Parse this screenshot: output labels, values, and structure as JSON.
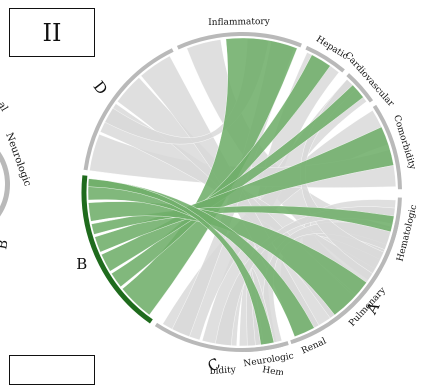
{
  "panel_label": "II",
  "colors": {
    "ribbon_grey": "#d9d9d9",
    "ribbon_green": "#6fae6a",
    "arc_grey": "#b9b9b9",
    "arc_highlight": "#1f6b1d"
  },
  "groups": [
    {
      "id": "A",
      "label": "A"
    },
    {
      "id": "C",
      "label": "C"
    },
    {
      "id": "B",
      "label": "B"
    },
    {
      "id": "D",
      "label": "D"
    },
    {
      "id": "inflammatory",
      "label": "Inflammatory"
    },
    {
      "id": "hepatic",
      "label": "Hepatic"
    },
    {
      "id": "cardiovascular",
      "label": "Cardiovascular"
    },
    {
      "id": "comorbidity",
      "label": "Comorbidity"
    },
    {
      "id": "hematologic",
      "label": "Hematologic"
    },
    {
      "id": "pulmonary",
      "label": "Pulmonary"
    },
    {
      "id": "renal",
      "label": "Renal"
    },
    {
      "id": "neurologic",
      "label": "Neurologic"
    }
  ],
  "highlighted_group": "B",
  "left_fragment": {
    "labels": [
      "Neurologic",
      "al",
      "B"
    ]
  },
  "bottom_fragment": {
    "labels": [
      "bidity",
      "Hem"
    ]
  }
}
